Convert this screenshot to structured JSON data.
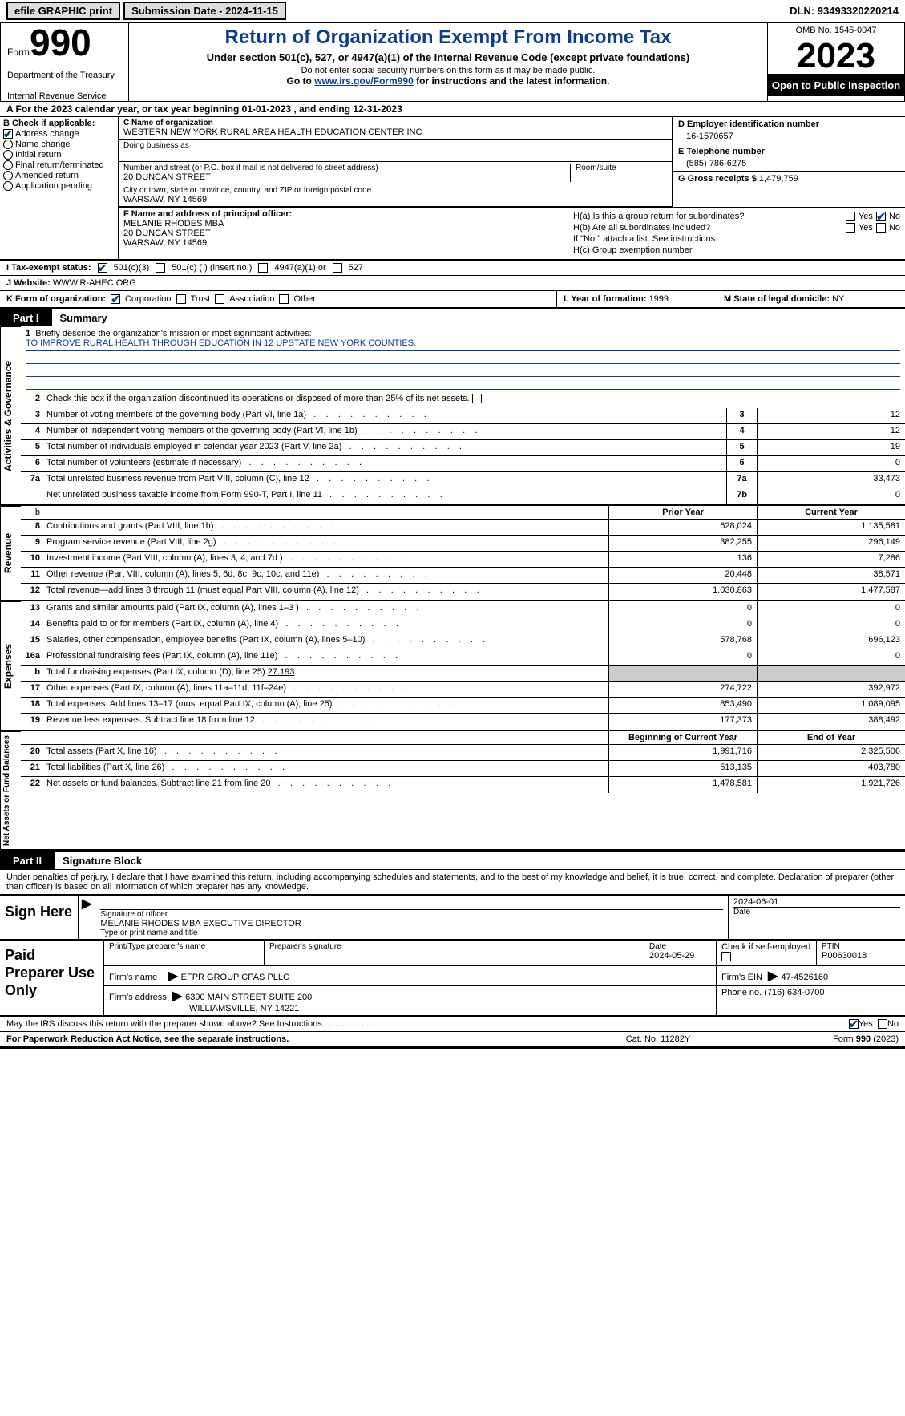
{
  "topbar": {
    "efile": "efile GRAPHIC print",
    "sub_date_lbl": "Submission Date - 2024-11-15",
    "dln_lbl": "DLN: 93493320220214"
  },
  "header": {
    "form_word": "Form",
    "form_num": "990",
    "dept": "Department of the Treasury",
    "irs": "Internal Revenue Service",
    "title": "Return of Organization Exempt From Income Tax",
    "subtitle": "Under section 501(c), 527, or 4947(a)(1) of the Internal Revenue Code (except private foundations)",
    "ssn_note": "Do not enter social security numbers on this form as it may be made public.",
    "goto_pre": "Go to ",
    "goto_link": "www.irs.gov/Form990",
    "goto_post": " for instructions and the latest information.",
    "omb": "OMB No. 1545-0047",
    "year": "2023",
    "open": "Open to Public Inspection"
  },
  "line_a": "A For the 2023 calendar year, or tax year beginning 01-01-2023   , and ending 12-31-2023",
  "col_b": {
    "hdr": "B Check if applicable:",
    "opts": [
      "Address change",
      "Name change",
      "Initial return",
      "Final return/terminated",
      "Amended return",
      "Application pending"
    ]
  },
  "col_c": {
    "name_lbl": "C Name of organization",
    "name": "WESTERN NEW YORK RURAL AREA HEALTH EDUCATION CENTER INC",
    "dba_lbl": "Doing business as",
    "addr_lbl": "Number and street (or P.O. box if mail is not delivered to street address)",
    "addr": "20 DUNCAN STREET",
    "room_lbl": "Room/suite",
    "city_lbl": "City or town, state or province, country, and ZIP or foreign postal code",
    "city": "WARSAW, NY  14569"
  },
  "col_d": {
    "lbl": "D Employer identification number",
    "val": "16-1570657"
  },
  "col_e": {
    "lbl": "E Telephone number",
    "val": "(585) 786-6275"
  },
  "col_g": {
    "lbl": "G Gross receipts $ ",
    "val": "1,479,759"
  },
  "col_f": {
    "lbl": "F  Name and address of principal officer:",
    "name": "MELANIE RHODES MBA",
    "addr1": "20 DUNCAN STREET",
    "addr2": "WARSAW, NY  14569"
  },
  "col_h": {
    "a_lbl": "H(a)  Is this a group return for subordinates?",
    "b_lbl": "H(b)  Are all subordinates included?",
    "note": "If \"No,\" attach a list. See instructions.",
    "c_lbl": "H(c)  Group exemption number",
    "yes": "Yes",
    "no": "No"
  },
  "row_i": {
    "lbl": "I   Tax-exempt status:",
    "c3": "501(c)(3)",
    "c": "501(c) (   ) (insert no.)",
    "a1": "4947(a)(1) or",
    "s527": "527"
  },
  "row_j": {
    "lbl": "J   Website:",
    "val": " WWW.R-AHEC.ORG"
  },
  "row_k": {
    "lbl": "K Form of organization:",
    "corp": "Corporation",
    "trust": "Trust",
    "assoc": "Association",
    "other": "Other",
    "l_lbl": "L Year of formation: ",
    "l_val": "1999",
    "m_lbl": "M State of legal domicile: ",
    "m_val": "NY"
  },
  "part1": {
    "tab": "Part I",
    "title": "Summary"
  },
  "summary": {
    "sec_gov": "Activities & Governance",
    "sec_rev": "Revenue",
    "sec_exp": "Expenses",
    "sec_na": "Net Assets or Fund Balances",
    "l1_lbl": "Briefly describe the organization's mission or most significant activities:",
    "l1_val": "TO IMPROVE RURAL HEALTH THROUGH EDUCATION IN 12 UPSTATE NEW YORK COUNTIES.",
    "l2": "Check this box       if the organization discontinued its operations or disposed of more than 25% of its net assets.",
    "rows_gov": [
      {
        "n": "3",
        "d": "Number of voting members of the governing body (Part VI, line 1a)",
        "box": "3",
        "v": "12"
      },
      {
        "n": "4",
        "d": "Number of independent voting members of the governing body (Part VI, line 1b)",
        "box": "4",
        "v": "12"
      },
      {
        "n": "5",
        "d": "Total number of individuals employed in calendar year 2023 (Part V, line 2a)",
        "box": "5",
        "v": "19"
      },
      {
        "n": "6",
        "d": "Total number of volunteers (estimate if necessary)",
        "box": "6",
        "v": "0"
      },
      {
        "n": "7a",
        "d": "Total unrelated business revenue from Part VIII, column (C), line 12",
        "box": "7a",
        "v": "33,473"
      },
      {
        "n": "",
        "d": "Net unrelated business taxable income from Form 990-T, Part I, line 11",
        "box": "7b",
        "v": "0"
      }
    ],
    "hdr_b": "b",
    "hdr_prior": "Prior Year",
    "hdr_curr": "Current Year",
    "rows_rev": [
      {
        "n": "8",
        "d": "Contributions and grants (Part VIII, line 1h)",
        "p": "628,024",
        "c": "1,135,581"
      },
      {
        "n": "9",
        "d": "Program service revenue (Part VIII, line 2g)",
        "p": "382,255",
        "c": "296,149"
      },
      {
        "n": "10",
        "d": "Investment income (Part VIII, column (A), lines 3, 4, and 7d )",
        "p": "136",
        "c": "7,286"
      },
      {
        "n": "11",
        "d": "Other revenue (Part VIII, column (A), lines 5, 6d, 8c, 9c, 10c, and 11e)",
        "p": "20,448",
        "c": "38,571"
      },
      {
        "n": "12",
        "d": "Total revenue—add lines 8 through 11 (must equal Part VIII, column (A), line 12)",
        "p": "1,030,863",
        "c": "1,477,587"
      }
    ],
    "rows_exp": [
      {
        "n": "13",
        "d": "Grants and similar amounts paid (Part IX, column (A), lines 1–3 )",
        "p": "0",
        "c": "0"
      },
      {
        "n": "14",
        "d": "Benefits paid to or for members (Part IX, column (A), line 4)",
        "p": "0",
        "c": "0"
      },
      {
        "n": "15",
        "d": "Salaries, other compensation, employee benefits (Part IX, column (A), lines 5–10)",
        "p": "578,768",
        "c": "696,123"
      },
      {
        "n": "16a",
        "d": "Professional fundraising fees (Part IX, column (A), line 11e)",
        "p": "0",
        "c": "0"
      }
    ],
    "l16b_lbl": "Total fundraising expenses (Part IX, column (D), line 25) ",
    "l16b_val": "27,193",
    "rows_exp2": [
      {
        "n": "17",
        "d": "Other expenses (Part IX, column (A), lines 11a–11d, 11f–24e)",
        "p": "274,722",
        "c": "392,972"
      },
      {
        "n": "18",
        "d": "Total expenses. Add lines 13–17 (must equal Part IX, column (A), line 25)",
        "p": "853,490",
        "c": "1,089,095"
      },
      {
        "n": "19",
        "d": "Revenue less expenses. Subtract line 18 from line 12",
        "p": "177,373",
        "c": "388,492"
      }
    ],
    "hdr_beg": "Beginning of Current Year",
    "hdr_end": "End of Year",
    "rows_na": [
      {
        "n": "20",
        "d": "Total assets (Part X, line 16)",
        "p": "1,991,716",
        "c": "2,325,506"
      },
      {
        "n": "21",
        "d": "Total liabilities (Part X, line 26)",
        "p": "513,135",
        "c": "403,780"
      },
      {
        "n": "22",
        "d": "Net assets or fund balances. Subtract line 21 from line 20",
        "p": "1,478,581",
        "c": "1,921,726"
      }
    ]
  },
  "part2": {
    "tab": "Part II",
    "title": "Signature Block"
  },
  "sig_intro": "Under penalties of perjury, I declare that I have examined this return, including accompanying schedules and statements, and to the best of my knowledge and belief, it is true, correct, and complete. Declaration of preparer (other than officer) is based on all information of which preparer has any knowledge.",
  "sign": {
    "left": "Sign Here",
    "sig_lbl": "Signature of officer",
    "name": "MELANIE RHODES MBA  EXECUTIVE DIRECTOR",
    "type_lbl": "Type or print name and title",
    "date_lbl": "Date",
    "date": "2024-06-01"
  },
  "paid": {
    "left": "Paid Preparer Use Only",
    "prep_name_lbl": "Print/Type preparer's name",
    "prep_sig_lbl": "Preparer's signature",
    "date_lbl": "Date",
    "date": "2024-05-29",
    "check_lbl": "Check         if self-employed",
    "ptin_lbl": "PTIN",
    "ptin": "P00630018",
    "firm_name_lbl": "Firm's name",
    "firm_name": "EFPR GROUP CPAS PLLC",
    "firm_ein_lbl": "Firm's EIN",
    "firm_ein": "47-4526160",
    "firm_addr_lbl": "Firm's address",
    "firm_addr1": "6390 MAIN STREET SUITE 200",
    "firm_addr2": "WILLIAMSVILLE, NY  14221",
    "phone_lbl": "Phone no.",
    "phone": "(716) 634-0700"
  },
  "irs_discuss": {
    "q": "May the IRS discuss this return with the preparer shown above? See Instructions.",
    "yes": "Yes",
    "no": "No"
  },
  "footer": {
    "left": "For Paperwork Reduction Act Notice, see the separate instructions.",
    "mid": "Cat. No. 11282Y",
    "right_pre": "Form ",
    "right_b": "990",
    "right_post": " (2023)"
  }
}
